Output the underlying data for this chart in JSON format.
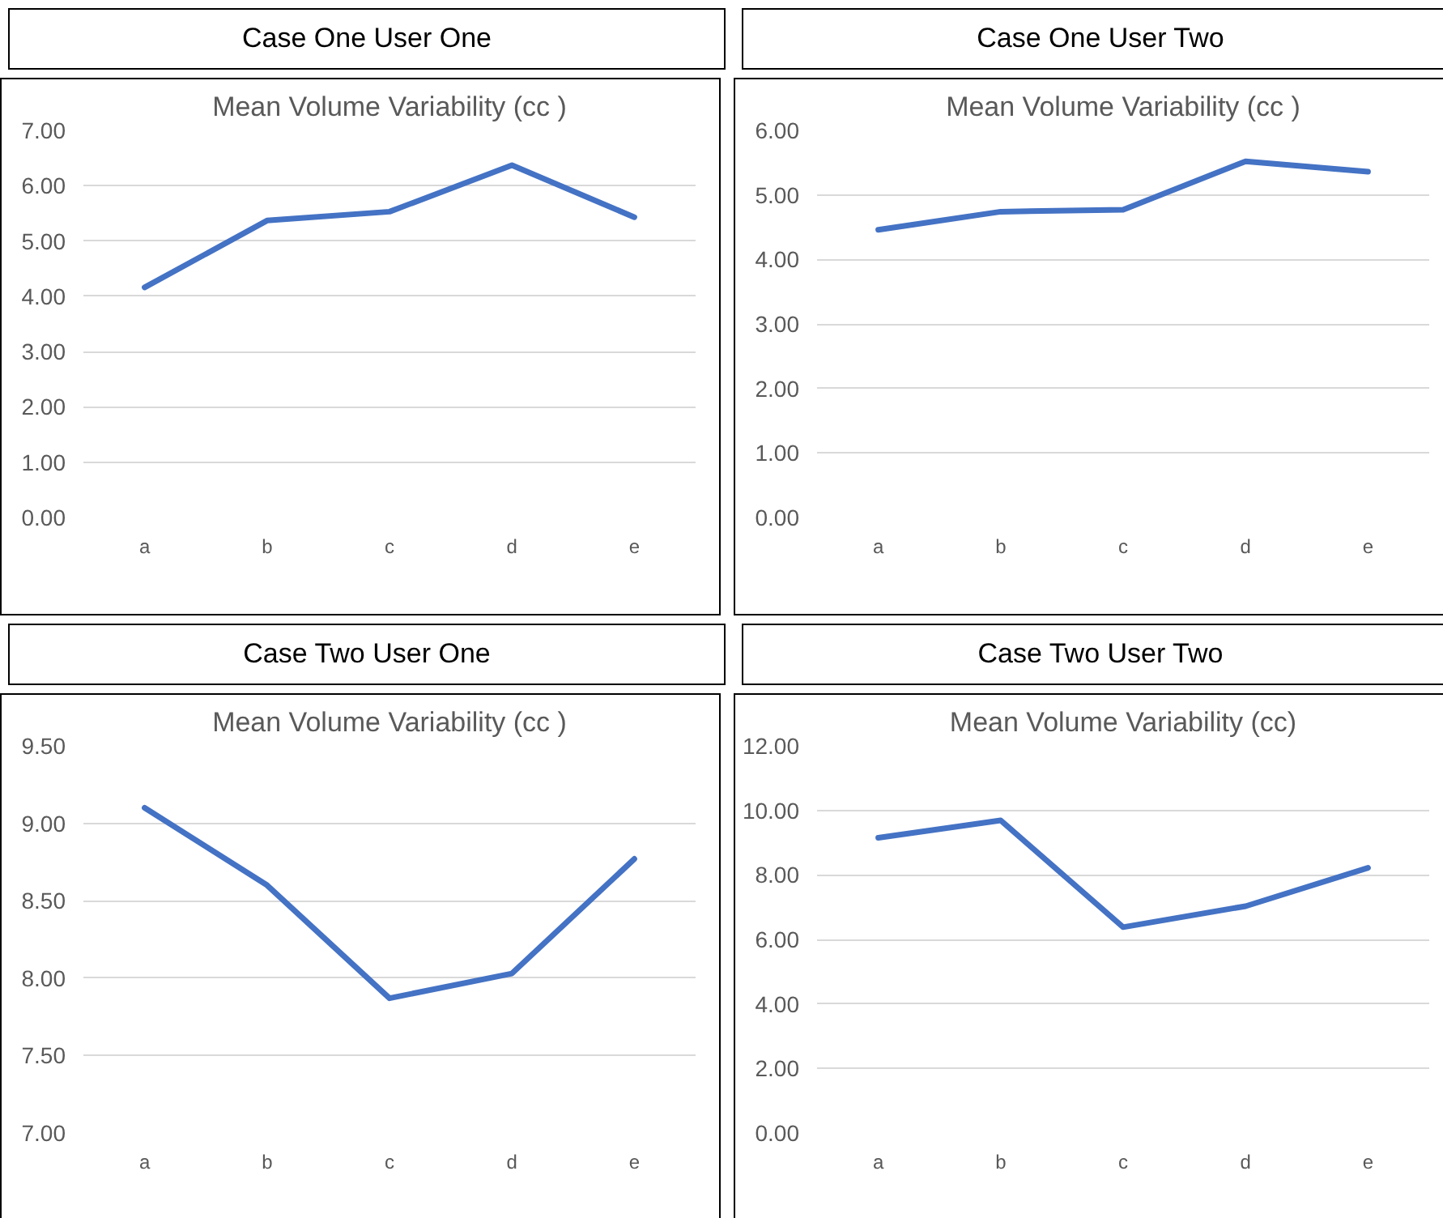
{
  "chart_data": [
    {
      "type": "line",
      "title": "Case One User One",
      "subtitle": "Mean Volume Variability (cc )",
      "categories": [
        "a",
        "b",
        "c",
        "d",
        "e"
      ],
      "series": [
        {
          "color": "#4472c4",
          "values": [
            4.16,
            5.37,
            5.53,
            6.37,
            5.43
          ]
        }
      ],
      "ylim": [
        0,
        7
      ],
      "yticks": [
        {
          "value": 0,
          "label": "0.00"
        },
        {
          "value": 1,
          "label": "1.00"
        },
        {
          "value": 2,
          "label": "2.00"
        },
        {
          "value": 3,
          "label": "3.00"
        },
        {
          "value": 4,
          "label": "4.00"
        },
        {
          "value": 5,
          "label": "5.00"
        },
        {
          "value": 6,
          "label": "6.00"
        },
        {
          "value": 7,
          "label": "7.00"
        }
      ],
      "grid": "y"
    },
    {
      "type": "line",
      "title": "Case One User Two",
      "subtitle": "Mean Volume Variability (cc )",
      "categories": [
        "a",
        "b",
        "c",
        "d",
        "e"
      ],
      "series": [
        {
          "color": "#4472c4",
          "values": [
            4.46,
            4.74,
            4.77,
            5.52,
            5.36
          ]
        }
      ],
      "ylim": [
        0,
        6
      ],
      "yticks": [
        {
          "value": 0,
          "label": "0.00"
        },
        {
          "value": 1,
          "label": "1.00"
        },
        {
          "value": 2,
          "label": "2.00"
        },
        {
          "value": 3,
          "label": "3.00"
        },
        {
          "value": 4,
          "label": "4.00"
        },
        {
          "value": 5,
          "label": "5.00"
        },
        {
          "value": 6,
          "label": "6.00"
        }
      ],
      "grid": "y"
    },
    {
      "type": "line",
      "title": "Case Two User One",
      "subtitle": "Mean Volume Variability (cc )",
      "categories": [
        "a",
        "b",
        "c",
        "d",
        "e"
      ],
      "series": [
        {
          "color": "#4472c4",
          "values": [
            9.1,
            8.6,
            7.87,
            8.03,
            8.77
          ]
        }
      ],
      "ylim": [
        7,
        9.5
      ],
      "yticks": [
        {
          "value": 7,
          "label": "7.00"
        },
        {
          "value": 7.5,
          "label": "7.50"
        },
        {
          "value": 8,
          "label": "8.00"
        },
        {
          "value": 8.5,
          "label": "8.50"
        },
        {
          "value": 9,
          "label": "9.00"
        },
        {
          "value": 9.5,
          "label": "9.50"
        }
      ],
      "grid": "y"
    },
    {
      "type": "line",
      "title": "Case Two User Two",
      "subtitle": "Mean Volume Variability (cc)",
      "categories": [
        "a",
        "b",
        "c",
        "d",
        "e"
      ],
      "series": [
        {
          "color": "#4472c4",
          "values": [
            9.15,
            9.69,
            6.38,
            7.03,
            8.22
          ]
        }
      ],
      "ylim": [
        0,
        12
      ],
      "yticks": [
        {
          "value": 0,
          "label": "0.00"
        },
        {
          "value": 2,
          "label": "2.00"
        },
        {
          "value": 4,
          "label": "4.00"
        },
        {
          "value": 6,
          "label": "6.00"
        },
        {
          "value": 8,
          "label": "8.00"
        },
        {
          "value": 10,
          "label": "10.00"
        },
        {
          "value": 12,
          "label": "12.00"
        }
      ],
      "grid": "y"
    }
  ]
}
